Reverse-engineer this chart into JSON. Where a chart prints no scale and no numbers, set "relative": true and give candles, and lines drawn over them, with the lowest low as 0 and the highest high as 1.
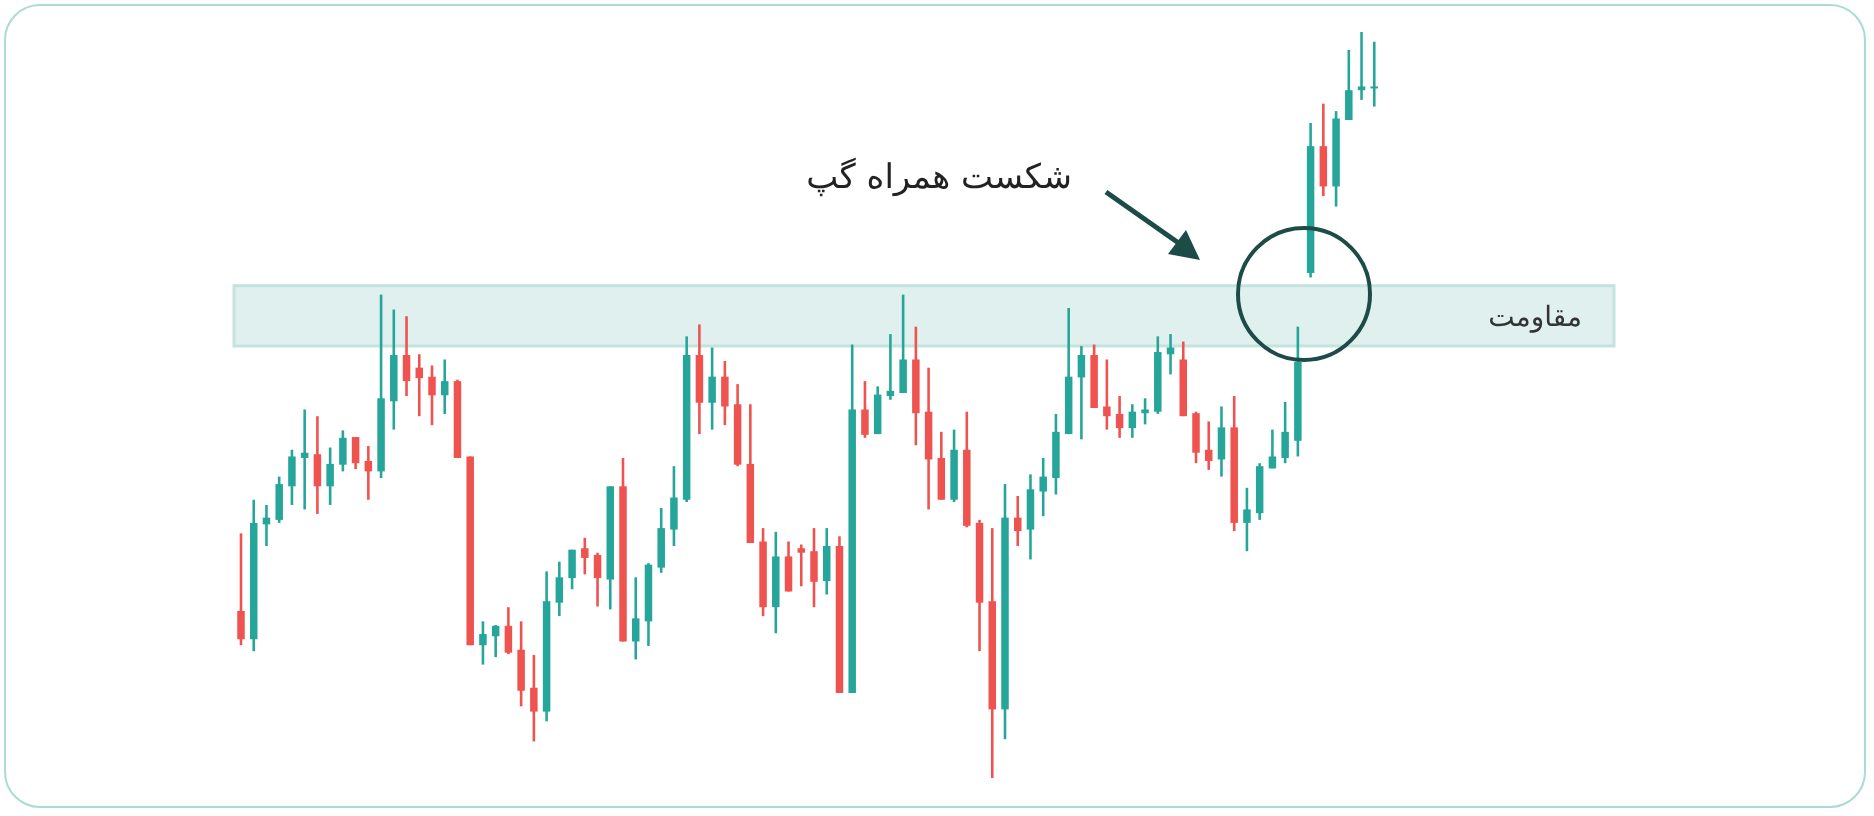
{
  "chart_data": {
    "type": "candlestick",
    "relative": true,
    "categories": [
      null,
      null,
      null,
      null,
      null,
      null,
      null,
      null,
      null,
      null,
      null,
      null,
      null,
      null,
      null,
      null,
      null,
      null,
      null,
      null,
      null,
      null,
      null,
      null,
      null,
      null,
      null,
      null,
      null,
      null,
      null,
      null,
      null,
      null,
      null,
      null,
      null,
      null,
      null,
      null,
      null,
      null,
      null,
      null,
      null,
      null,
      null,
      null,
      null,
      null,
      null,
      null,
      null,
      null,
      null,
      null,
      null,
      null,
      null,
      null,
      null,
      null,
      null,
      null,
      null,
      null,
      null,
      null,
      null,
      null,
      null,
      null,
      null,
      null,
      null,
      null,
      null,
      null,
      null,
      null,
      null,
      null,
      null,
      null,
      null,
      null,
      null,
      null,
      null,
      null
    ],
    "ohlc": [
      [
        0.224,
        0.328,
        0.178,
        0.186
      ],
      [
        0.186,
        0.373,
        0.17,
        0.342
      ],
      [
        0.34,
        0.366,
        0.311,
        0.349
      ],
      [
        0.346,
        0.404,
        0.342,
        0.394
      ],
      [
        0.391,
        0.44,
        0.366,
        0.431
      ],
      [
        0.429,
        0.494,
        0.36,
        0.436
      ],
      [
        0.434,
        0.485,
        0.354,
        0.391
      ],
      [
        0.391,
        0.443,
        0.366,
        0.421
      ],
      [
        0.42,
        0.466,
        0.411,
        0.456
      ],
      [
        0.457,
        0.457,
        0.414,
        0.422
      ],
      [
        0.425,
        0.445,
        0.373,
        0.411
      ],
      [
        0.411,
        0.648,
        0.402,
        0.509
      ],
      [
        0.505,
        0.628,
        0.467,
        0.567
      ],
      [
        0.567,
        0.619,
        0.512,
        0.532
      ],
      [
        0.55,
        0.568,
        0.485,
        0.536
      ],
      [
        0.538,
        0.553,
        0.473,
        0.513
      ],
      [
        0.513,
        0.561,
        0.488,
        0.532
      ],
      [
        0.532,
        0.534,
        0.429,
        0.429
      ],
      [
        0.431,
        0.431,
        0.178,
        0.178
      ],
      [
        0.178,
        0.21,
        0.152,
        0.193
      ],
      [
        0.19,
        0.205,
        0.162,
        0.204
      ],
      [
        0.204,
        0.229,
        0.166,
        0.168
      ],
      [
        0.172,
        0.21,
        0.096,
        0.117
      ],
      [
        0.121,
        0.165,
        0.049,
        0.089
      ],
      [
        0.089,
        0.277,
        0.076,
        0.237
      ],
      [
        0.235,
        0.29,
        0.217,
        0.269
      ],
      [
        0.268,
        0.306,
        0.253,
        0.306
      ],
      [
        0.308,
        0.322,
        0.273,
        0.295
      ],
      [
        0.299,
        0.302,
        0.23,
        0.268
      ],
      [
        0.266,
        0.391,
        0.226,
        0.391
      ],
      [
        0.391,
        0.429,
        0.183,
        0.183
      ],
      [
        0.183,
        0.269,
        0.159,
        0.214
      ],
      [
        0.21,
        0.288,
        0.177,
        0.286
      ],
      [
        0.282,
        0.362,
        0.275,
        0.335
      ],
      [
        0.333,
        0.418,
        0.311,
        0.376
      ],
      [
        0.373,
        0.592,
        0.37,
        0.567
      ],
      [
        0.567,
        0.608,
        0.461,
        0.503
      ],
      [
        0.503,
        0.577,
        0.467,
        0.538
      ],
      [
        0.538,
        0.559,
        0.473,
        0.498
      ],
      [
        0.501,
        0.528,
        0.418,
        0.42
      ],
      [
        0.421,
        0.501,
        0.315,
        0.315
      ],
      [
        0.317,
        0.335,
        0.217,
        0.229
      ],
      [
        0.229,
        0.33,
        0.194,
        0.297
      ],
      [
        0.297,
        0.317,
        0.25,
        0.25
      ],
      [
        0.308,
        0.313,
        0.257,
        0.302
      ],
      [
        0.304,
        0.335,
        0.229,
        0.263
      ],
      [
        0.264,
        0.335,
        0.246,
        0.311
      ],
      [
        0.311,
        0.324,
        0.114,
        0.114
      ],
      [
        0.114,
        0.581,
        0.114,
        0.494
      ],
      [
        0.494,
        0.532,
        0.456,
        0.46
      ],
      [
        0.461,
        0.525,
        0.461,
        0.514
      ],
      [
        0.512,
        0.595,
        0.507,
        0.519
      ],
      [
        0.516,
        0.648,
        0.516,
        0.561
      ],
      [
        0.561,
        0.605,
        0.446,
        0.489
      ],
      [
        0.491,
        0.55,
        0.36,
        0.427
      ],
      [
        0.429,
        0.464,
        0.373,
        0.373
      ],
      [
        0.373,
        0.467,
        0.37,
        0.44
      ],
      [
        0.44,
        0.491,
        0.336,
        0.338
      ],
      [
        0.342,
        0.346,
        0.17,
        0.235
      ],
      [
        0.237,
        0.335,
        0,
        0.092
      ],
      [
        0.092,
        0.394,
        0.052,
        0.349
      ],
      [
        0.349,
        0.378,
        0.311,
        0.331
      ],
      [
        0.333,
        0.407,
        0.293,
        0.387
      ],
      [
        0.384,
        0.429,
        0.351,
        0.404
      ],
      [
        0.402,
        0.488,
        0.38,
        0.464
      ],
      [
        0.461,
        0.63,
        0.461,
        0.538
      ],
      [
        0.537,
        0.579,
        0.454,
        0.567
      ],
      [
        0.567,
        0.581,
        0.496,
        0.496
      ],
      [
        0.498,
        0.561,
        0.467,
        0.485
      ],
      [
        0.488,
        0.512,
        0.456,
        0.469
      ],
      [
        0.469,
        0.501,
        0.456,
        0.491
      ],
      [
        0.489,
        0.509,
        0.474,
        0.494
      ],
      [
        0.491,
        0.592,
        0.488,
        0.571
      ],
      [
        0.568,
        0.595,
        0.541,
        0.577
      ],
      [
        0.561,
        0.585,
        0.485,
        0.485
      ],
      [
        0.489,
        0.491,
        0.422,
        0.436
      ],
      [
        0.44,
        0.478,
        0.413,
        0.425
      ],
      [
        0.427,
        0.498,
        0.404,
        0.47
      ],
      [
        0.47,
        0.512,
        0.331,
        0.342
      ],
      [
        0.342,
        0.389,
        0.304,
        0.36
      ],
      [
        0.355,
        0.422,
        0.346,
        0.418
      ],
      [
        0.415,
        0.467,
        0.415,
        0.431
      ],
      [
        0.429,
        0.504,
        0.422,
        0.464
      ],
      [
        0.452,
        0.605,
        0.431,
        0.558
      ],
      [
        0.677,
        0.878,
        0.671,
        0.847
      ],
      [
        0.847,
        0.904,
        0.78,
        0.793
      ],
      [
        0.793,
        0.894,
        0.766,
        0.884
      ],
      [
        0.882,
        0.976,
        0.882,
        0.922
      ],
      [
        0.922,
        1,
        0.909,
        0.927
      ],
      [
        0.925,
        0.987,
        0.9,
        0.927
      ]
    ],
    "colors": [
      "#ef5350",
      "#26a69a",
      "#26a69a",
      "#26a69a",
      "#26a69a",
      "#26a69a",
      "#ef5350",
      "#26a69a",
      "#26a69a",
      "#ef5350",
      "#ef5350",
      "#26a69a",
      "#26a69a",
      "#ef5350",
      "#ef5350",
      "#ef5350",
      "#26a69a",
      "#ef5350",
      "#ef5350",
      "#26a69a",
      "#26a69a",
      "#ef5350",
      "#ef5350",
      "#ef5350",
      "#26a69a",
      "#26a69a",
      "#26a69a",
      "#ef5350",
      "#ef5350",
      "#26a69a",
      "#ef5350",
      "#26a69a",
      "#26a69a",
      "#26a69a",
      "#26a69a",
      "#26a69a",
      "#ef5350",
      "#26a69a",
      "#ef5350",
      "#ef5350",
      "#ef5350",
      "#ef5350",
      "#26a69a",
      "#ef5350",
      "#ef5350",
      "#ef5350",
      "#26a69a",
      "#ef5350",
      "#26a69a",
      "#ef5350",
      "#26a69a",
      "#26a69a",
      "#26a69a",
      "#ef5350",
      "#ef5350",
      "#ef5350",
      "#26a69a",
      "#ef5350",
      "#ef5350",
      "#ef5350",
      "#26a69a",
      "#ef5350",
      "#26a69a",
      "#26a69a",
      "#26a69a",
      "#26a69a",
      "#26a69a",
      "#ef5350",
      "#ef5350",
      "#ef5350",
      "#26a69a",
      "#26a69a",
      "#26a69a",
      "#26a69a",
      "#ef5350",
      "#ef5350",
      "#ef5350",
      "#26a69a",
      "#ef5350",
      "#26a69a",
      "#26a69a",
      "#26a69a",
      "#26a69a",
      "#26a69a",
      "#26a69a",
      "#ef5350",
      "#26a69a",
      "#26a69a",
      "#26a69a",
      "#26a69a"
    ],
    "bands": [
      {
        "axis": "y",
        "from": 0.579,
        "to": 0.66,
        "label": "مقاومت",
        "color": "#e0f0ef"
      }
    ],
    "annotations": [
      "شکست همراه گپ"
    ]
  }
}
